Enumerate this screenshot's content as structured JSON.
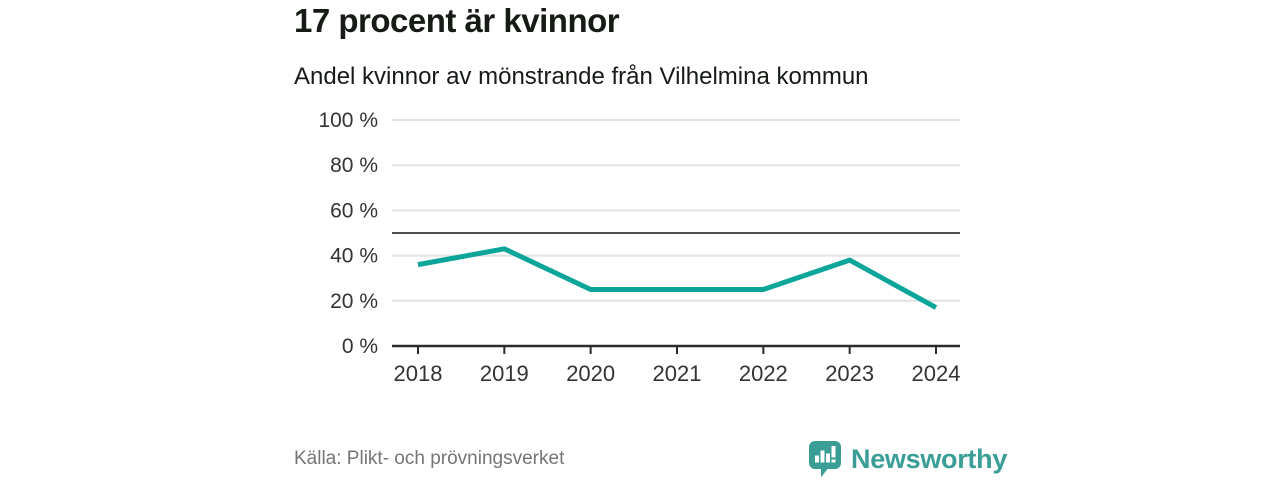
{
  "header": {
    "title": "17 procent är kvinnor",
    "subtitle": "Andel kvinnor av mönstrande från Vilhelmina kommun"
  },
  "chart_data": {
    "type": "line",
    "title": "17 procent är kvinnor",
    "subtitle": "Andel kvinnor av mönstrande från Vilhelmina kommun",
    "categories": [
      "2018",
      "2019",
      "2020",
      "2021",
      "2022",
      "2023",
      "2024"
    ],
    "series": [
      {
        "name": "Andel kvinnor av mönstrande",
        "values": [
          36,
          43,
          25,
          25,
          25,
          38,
          17
        ]
      }
    ],
    "ylim": [
      0,
      100
    ],
    "yticks": [
      0,
      20,
      40,
      60,
      80,
      100
    ],
    "ytick_labels": [
      "0 %",
      "20 %",
      "40 %",
      "60 %",
      "80 %",
      "100 %"
    ],
    "reference_line": 50,
    "grid": true,
    "legend": "none"
  },
  "footer": {
    "source": "Källa: Plikt- och prövningsverket",
    "brand": "Newsworthy",
    "logo_icon": "bar-chart-speech-bubble"
  },
  "colors": {
    "line": "#0ca59a",
    "brand": "#3a9e97",
    "grid": "#e2e2e2",
    "reference_line": "#4d4d4d",
    "axis": "#2b2b2b",
    "tick_label": "#333333",
    "title": "#161b16",
    "source_text": "#757575",
    "background": "#ffffff"
  }
}
